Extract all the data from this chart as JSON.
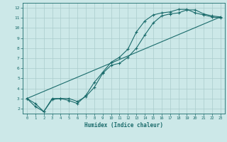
{
  "xlabel": "Humidex (Indice chaleur)",
  "bg_color": "#cce8e8",
  "grid_color": "#aacccc",
  "line_color": "#1a6b6b",
  "xlim": [
    -0.5,
    23.5
  ],
  "ylim": [
    1.5,
    12.5
  ],
  "xticks": [
    0,
    1,
    2,
    3,
    4,
    5,
    6,
    7,
    8,
    9,
    10,
    11,
    12,
    13,
    14,
    15,
    16,
    17,
    18,
    19,
    20,
    21,
    22,
    23
  ],
  "yticks": [
    2,
    3,
    4,
    5,
    6,
    7,
    8,
    9,
    10,
    11,
    12
  ],
  "line1_x": [
    0,
    1,
    2,
    3,
    4,
    5,
    6,
    7,
    8,
    9,
    10,
    11,
    12,
    13,
    14,
    15,
    16,
    17,
    18,
    19,
    20,
    21,
    22,
    23
  ],
  "line1_y": [
    3.0,
    2.2,
    1.7,
    3.0,
    3.0,
    3.0,
    2.7,
    3.2,
    4.1,
    5.5,
    6.3,
    6.5,
    7.1,
    8.0,
    9.3,
    10.5,
    11.2,
    11.4,
    11.5,
    11.8,
    11.8,
    11.4,
    11.2,
    11.1
  ],
  "line2_x": [
    0,
    1,
    2,
    3,
    4,
    5,
    6,
    7,
    8,
    9,
    10,
    11,
    12,
    13,
    14,
    15,
    16,
    17,
    18,
    19,
    20,
    21,
    22,
    23
  ],
  "line2_y": [
    3.0,
    2.5,
    1.7,
    2.9,
    3.0,
    2.8,
    2.5,
    3.3,
    4.6,
    5.6,
    6.6,
    7.1,
    7.9,
    9.6,
    10.7,
    11.3,
    11.5,
    11.6,
    11.85,
    11.85,
    11.5,
    11.3,
    11.1,
    11.0
  ],
  "line3_x": [
    0,
    23
  ],
  "line3_y": [
    3.0,
    11.1
  ]
}
